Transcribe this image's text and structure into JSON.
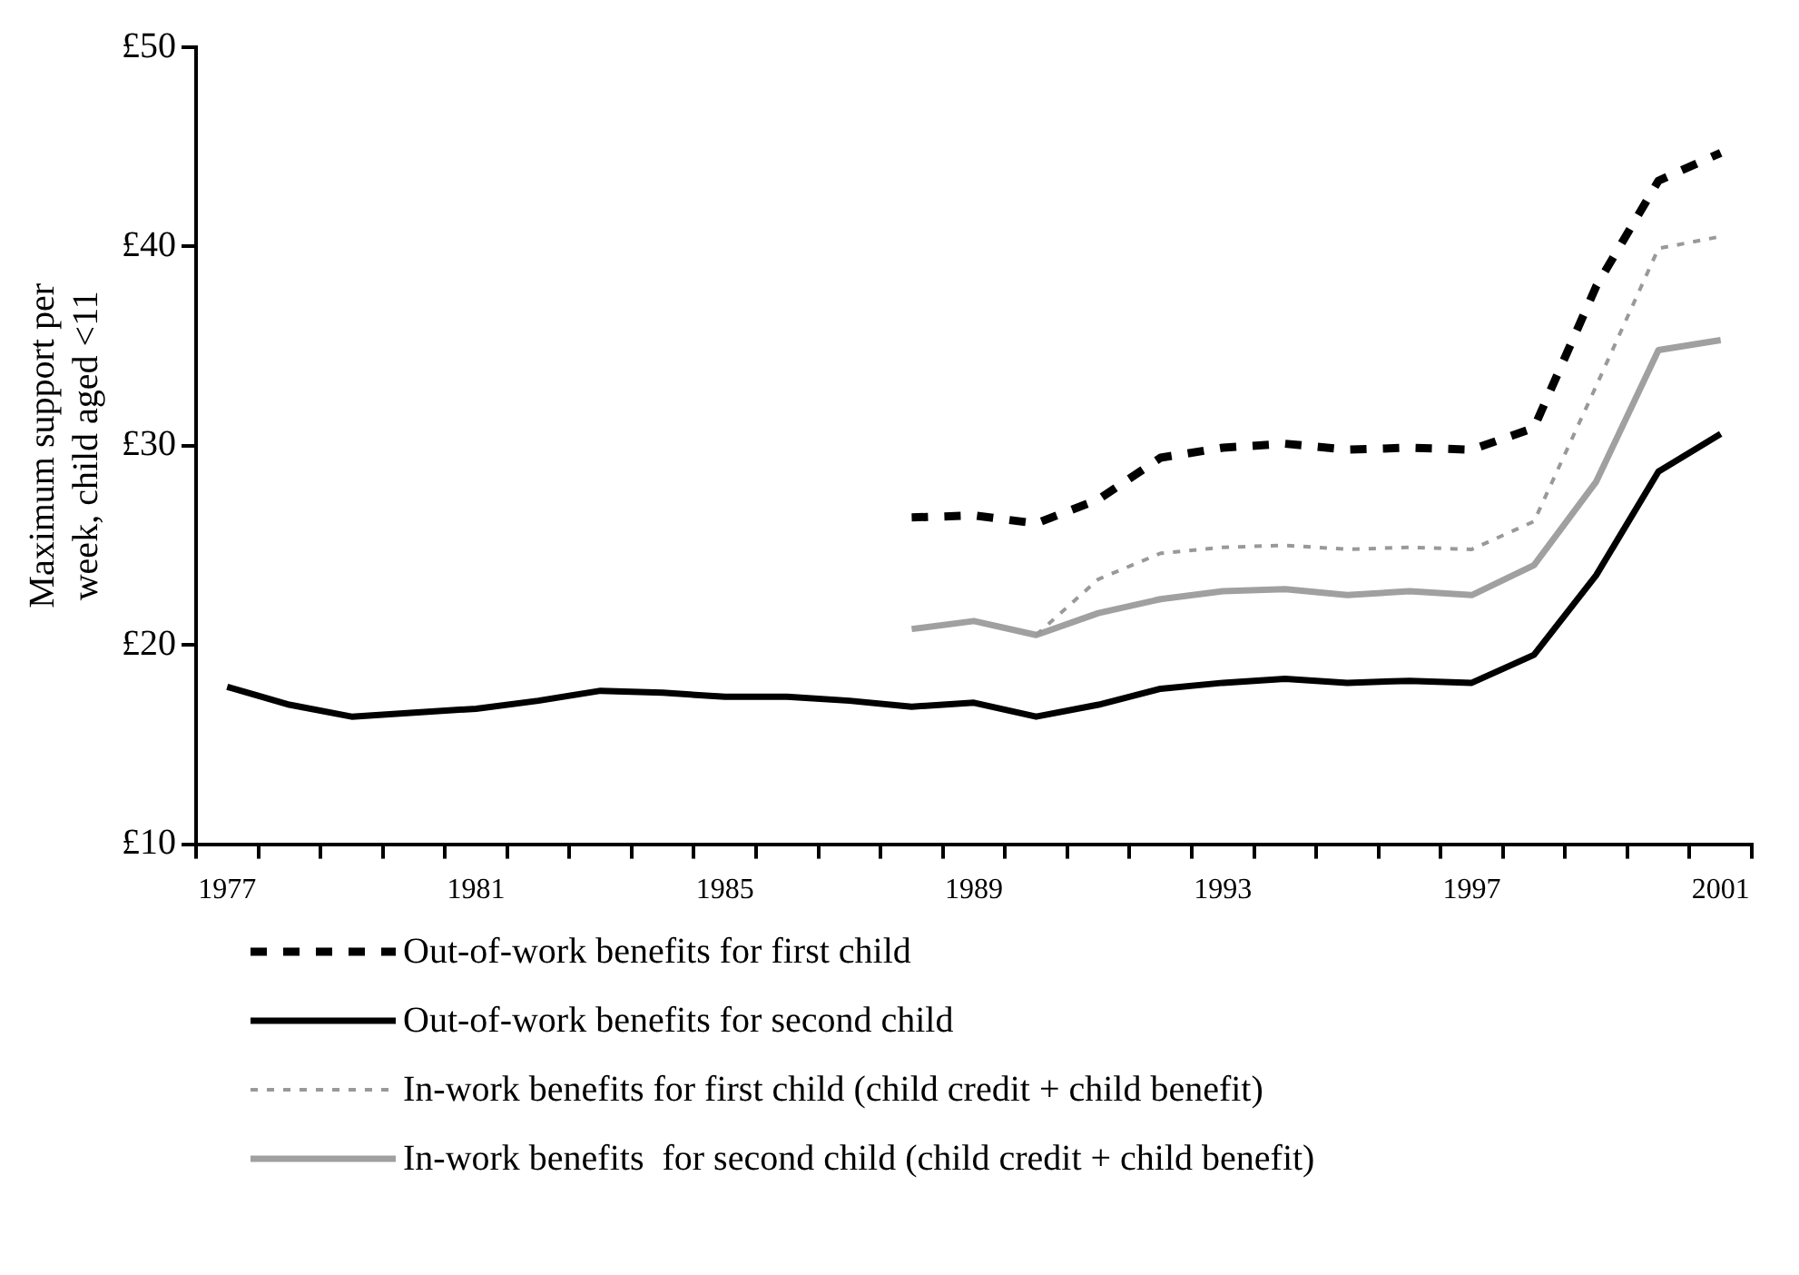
{
  "chart_data": {
    "type": "line",
    "ylabel": "Maximum support per week, child aged <11",
    "categories": [
      "1977",
      null,
      null,
      null,
      "1981",
      null,
      null,
      null,
      "1985",
      null,
      null,
      null,
      "1989",
      null,
      null,
      null,
      "1993",
      null,
      null,
      null,
      "1997",
      null,
      null,
      null,
      "2001"
    ],
    "series": [
      {
        "name": "Out-of-work benefits for first child",
        "color": "#000000",
        "line_style": "dashed",
        "values": [
          null,
          null,
          null,
          null,
          null,
          null,
          null,
          null,
          null,
          null,
          null,
          26.4,
          26.5,
          26.1,
          27.3,
          29.4,
          29.9,
          30.1,
          29.8,
          29.9,
          29.8,
          30.9,
          38.0,
          43.3,
          44.7
        ]
      },
      {
        "name": "Out-of-work benefits for second child",
        "color": "#000000",
        "line_style": "solid",
        "values": [
          17.9,
          17.0,
          16.4,
          16.6,
          16.8,
          17.2,
          17.7,
          17.6,
          17.4,
          17.4,
          17.2,
          16.9,
          17.1,
          16.4,
          17.0,
          17.8,
          18.1,
          18.3,
          18.1,
          18.2,
          18.1,
          19.5,
          23.5,
          28.7,
          30.6
        ]
      },
      {
        "name": "In-work benefits for first child (child credit + child benefit)",
        "color": "#999999",
        "line_style": "dotted",
        "values": [
          null,
          null,
          null,
          null,
          null,
          null,
          null,
          null,
          null,
          null,
          null,
          null,
          null,
          20.5,
          23.3,
          24.6,
          24.9,
          25.0,
          24.8,
          24.9,
          24.8,
          26.2,
          33.0,
          39.9,
          40.5
        ]
      },
      {
        "name": "In-work benefits  for second child (child credit + child benefit)",
        "color": "#a0a0a0",
        "line_style": "solid",
        "values": [
          null,
          null,
          null,
          null,
          null,
          null,
          null,
          null,
          null,
          null,
          null,
          20.8,
          21.2,
          20.5,
          21.6,
          22.3,
          22.7,
          22.8,
          22.5,
          22.7,
          22.5,
          24.0,
          28.2,
          34.8,
          35.3
        ]
      }
    ],
    "ylim": [
      10,
      50
    ],
    "yticks": [
      {
        "value": 10,
        "label": "£10"
      },
      {
        "value": 20,
        "label": "£20"
      },
      {
        "value": 30,
        "label": "£30"
      },
      {
        "value": 40,
        "label": "£40"
      },
      {
        "value": 50,
        "label": "£50"
      }
    ],
    "grid": false,
    "legend": "bottom",
    "marker": "none"
  }
}
